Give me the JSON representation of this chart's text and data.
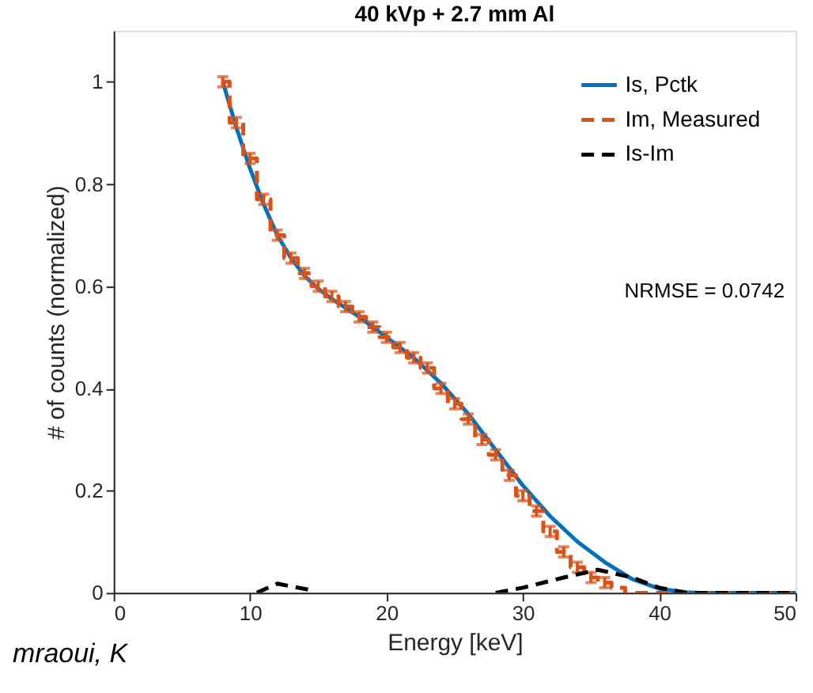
{
  "chart_data": {
    "type": "line",
    "title": "40 kVp + 2.7 mm Al",
    "xlabel": "Energy [keV]",
    "ylabel": "# of counts (normalized)",
    "xlim": [
      0,
      50
    ],
    "xticks": [
      0,
      10,
      20,
      30,
      40,
      50
    ],
    "ylim": [
      0,
      1.1
    ],
    "yticks": [
      0,
      0.2,
      0.4,
      0.6,
      0.8,
      1
    ],
    "legend": "top right",
    "annotations": [
      "NRMSE = 0.0742",
      "mraoui, K"
    ],
    "series": [
      {
        "name": "Is, Pctk",
        "color": "#0072bd",
        "line_style": "solid",
        "x": [
          8,
          9,
          10,
          11,
          12,
          13,
          14,
          15,
          16,
          18,
          20,
          22,
          24,
          26,
          28,
          30,
          32,
          34,
          36,
          38,
          40,
          42,
          43,
          50
        ],
        "values": [
          1.0,
          0.91,
          0.83,
          0.76,
          0.7,
          0.655,
          0.62,
          0.595,
          0.575,
          0.54,
          0.5,
          0.46,
          0.41,
          0.35,
          0.28,
          0.21,
          0.15,
          0.1,
          0.06,
          0.027,
          0.008,
          0.001,
          0,
          0
        ]
      },
      {
        "name": "Im, Measured",
        "type": "step",
        "color": "#d95319",
        "line_style": "dashed",
        "x": [
          8,
          9,
          10,
          11,
          12,
          13,
          14,
          15,
          16,
          17,
          18,
          19,
          20,
          21,
          22,
          23,
          24,
          25,
          26,
          27,
          28,
          29,
          30,
          31,
          32,
          33,
          34,
          35,
          36,
          37,
          38,
          39,
          40,
          41,
          42,
          43,
          44,
          45,
          46,
          47,
          48,
          49,
          50
        ],
        "values": [
          1.0,
          0.92,
          0.85,
          0.77,
          0.7,
          0.655,
          0.625,
          0.6,
          0.58,
          0.56,
          0.54,
          0.52,
          0.5,
          0.48,
          0.46,
          0.44,
          0.4,
          0.37,
          0.34,
          0.3,
          0.27,
          0.23,
          0.19,
          0.16,
          0.12,
          0.08,
          0.05,
          0.03,
          0.02,
          0.01,
          0,
          0,
          0,
          0,
          0,
          0,
          0,
          0,
          0,
          0,
          0,
          0,
          0
        ],
        "errors": [
          0.01,
          0.01,
          0.01,
          0.01,
          0.01,
          0.01,
          0.01,
          0.01,
          0.01,
          0.01,
          0.01,
          0.01,
          0.01,
          0.01,
          0.01,
          0.01,
          0.01,
          0.01,
          0.01,
          0.01,
          0.01,
          0.01,
          0.01,
          0.01,
          0.01,
          0.01,
          0.01,
          0.01,
          0.01,
          null,
          null,
          null,
          null,
          null,
          null,
          null,
          null,
          null,
          null,
          null,
          null,
          null,
          null
        ]
      },
      {
        "name": "Is-Im",
        "color": "#000000",
        "line_style": "dashed",
        "x": [
          10.5,
          12,
          14.5,
          15,
          28,
          30,
          33,
          35.5,
          38,
          40,
          42,
          50
        ],
        "values": [
          0,
          0.018,
          0.005,
          null,
          0,
          0.01,
          0.03,
          0.045,
          0.03,
          0.01,
          0,
          0
        ]
      }
    ]
  }
}
